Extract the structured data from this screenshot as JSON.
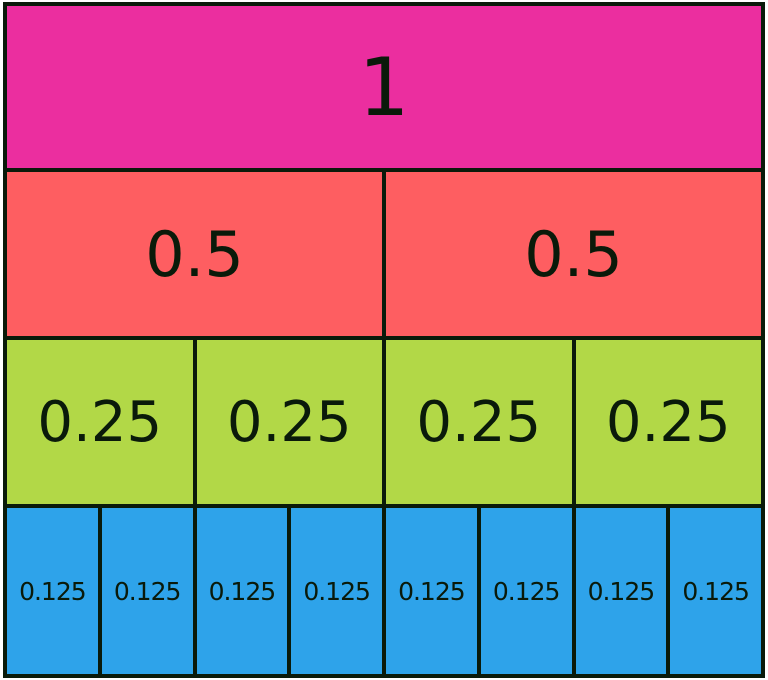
{
  "rows": [
    {
      "color": "#EB2E9F",
      "cells": [
        "1"
      ]
    },
    {
      "color": "#FE5E61",
      "cells": [
        "0.5",
        "0.5"
      ]
    },
    {
      "color": "#B2D847",
      "cells": [
        "0.25",
        "0.25",
        "0.25",
        "0.25"
      ]
    },
    {
      "color": "#2EA3EA",
      "cells": [
        "0.125",
        "0.125",
        "0.125",
        "0.125",
        "0.125",
        "0.125",
        "0.125",
        "0.125"
      ]
    }
  ]
}
